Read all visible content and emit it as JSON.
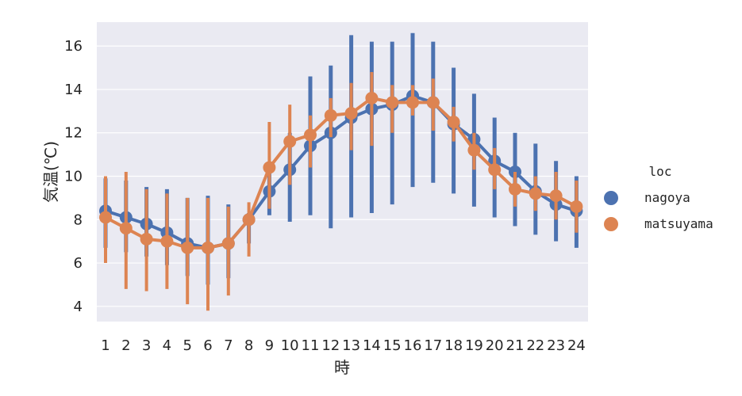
{
  "chart_data": {
    "type": "line",
    "xlabel": "時",
    "ylabel": "気温(℃)",
    "categories": [
      "1",
      "2",
      "3",
      "4",
      "5",
      "6",
      "7",
      "8",
      "9",
      "10",
      "11",
      "12",
      "13",
      "14",
      "15",
      "16",
      "17",
      "18",
      "19",
      "20",
      "21",
      "22",
      "23",
      "24"
    ],
    "ylim": [
      3.3,
      17.1
    ],
    "yticks": [
      4,
      6,
      8,
      10,
      12,
      14,
      16
    ],
    "grid": true,
    "legend_title": "loc",
    "legend_position": "right",
    "series": [
      {
        "name": "nagoya",
        "color": "#4c72b0",
        "values": [
          8.4,
          8.1,
          7.8,
          7.4,
          6.9,
          6.7,
          6.9,
          8.0,
          9.3,
          10.3,
          11.4,
          12.0,
          12.7,
          13.1,
          13.3,
          13.7,
          13.4,
          12.4,
          11.7,
          10.7,
          10.2,
          9.3,
          8.7,
          8.4
        ],
        "ci_low": [
          6.7,
          6.5,
          6.3,
          5.9,
          5.4,
          5.0,
          5.3,
          6.9,
          8.2,
          7.9,
          8.2,
          7.6,
          8.1,
          8.3,
          8.7,
          9.5,
          9.7,
          9.2,
          8.6,
          8.1,
          7.7,
          7.3,
          7.0,
          6.7
        ],
        "ci_high": [
          9.9,
          9.8,
          9.5,
          9.4,
          9.0,
          9.1,
          8.7,
          8.3,
          10.3,
          12.0,
          14.6,
          15.1,
          16.5,
          16.2,
          16.2,
          16.6,
          16.2,
          15.0,
          13.8,
          12.7,
          12.0,
          11.5,
          10.7,
          10.0
        ]
      },
      {
        "name": "matsuyama",
        "color": "#dd8452",
        "values": [
          8.1,
          7.6,
          7.1,
          7.0,
          6.7,
          6.7,
          6.9,
          8.0,
          10.4,
          11.6,
          11.9,
          12.8,
          12.9,
          13.6,
          13.4,
          13.4,
          13.4,
          12.5,
          11.2,
          10.3,
          9.4,
          9.2,
          9.1,
          8.6
        ],
        "ci_low": [
          6.0,
          4.8,
          4.7,
          4.8,
          4.1,
          3.8,
          4.5,
          6.3,
          8.5,
          9.6,
          10.4,
          11.8,
          11.2,
          11.4,
          12.0,
          12.8,
          12.1,
          11.6,
          10.3,
          9.4,
          8.6,
          8.4,
          8.0,
          7.4
        ],
        "ci_high": [
          10.0,
          10.2,
          9.4,
          9.2,
          9.0,
          9.0,
          8.6,
          8.8,
          12.5,
          13.3,
          12.8,
          13.6,
          14.3,
          14.8,
          14.2,
          14.2,
          14.5,
          13.2,
          12.0,
          11.3,
          10.2,
          10.0,
          10.2,
          9.8
        ]
      }
    ]
  }
}
